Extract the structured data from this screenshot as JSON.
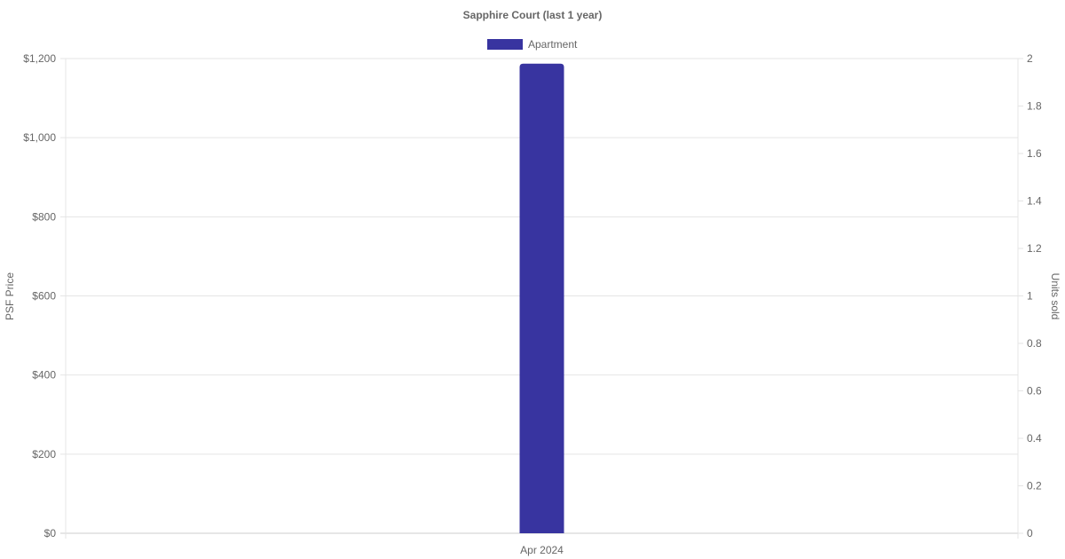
{
  "chart_data": {
    "type": "bar",
    "title": "Sapphire Court (last 1 year)",
    "categories": [
      "Apr 2024"
    ],
    "series": [
      {
        "name": "Apartment",
        "values": [
          1187
        ],
        "color": "#3834a0",
        "axis": "left"
      }
    ],
    "ylabel": "PSF Price",
    "y2label": "Units sold",
    "ylim": [
      0,
      1200
    ],
    "y2lim": [
      0,
      2
    ],
    "yticks": [
      "$0",
      "$200",
      "$400",
      "$600",
      "$800",
      "$1,000",
      "$1,200"
    ],
    "y2ticks": [
      "0",
      "0.2",
      "0.4",
      "0.6",
      "0.8",
      "1",
      "1.2",
      "1.4",
      "1.6",
      "1.8",
      "2"
    ],
    "grid": true,
    "legend": "top-center"
  }
}
